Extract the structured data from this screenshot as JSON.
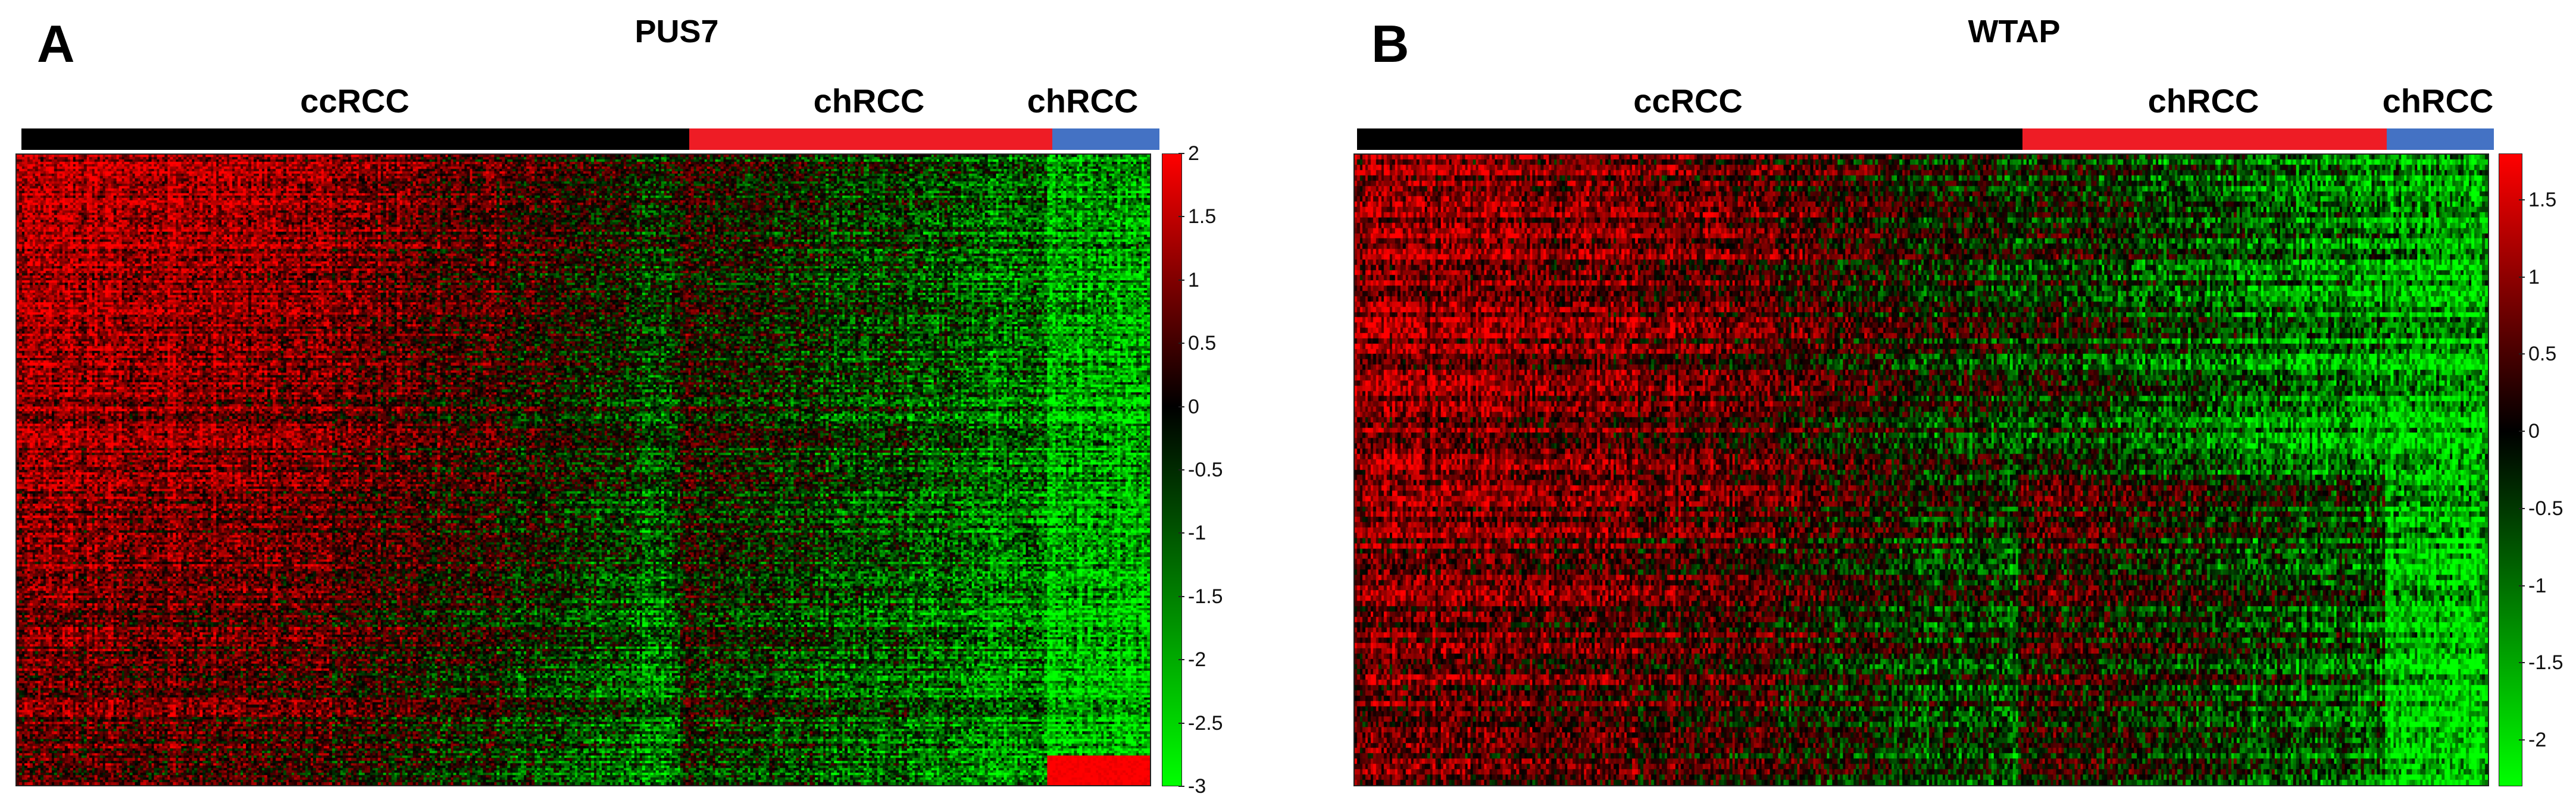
{
  "colors": {
    "high": "#ff0000",
    "mid": "#000000",
    "low": "#00ff00",
    "group_ccRCC": "#000000",
    "group_chRCC_1": "#ee1c25",
    "group_chRCC_2": "#4472c4"
  },
  "panels": [
    {
      "letter": "A",
      "title": "PUS7",
      "groups": [
        {
          "label": "ccRCC",
          "color": "#000000"
        },
        {
          "label": "chRCC",
          "color": "#ee1c25"
        },
        {
          "label": "chRCC",
          "color": "#4472c4"
        }
      ],
      "colorbar_ticks": [
        "2",
        "1.5",
        "1",
        "0.5",
        "0",
        "-0.5",
        "-1",
        "-1.5",
        "-2",
        "-2.5",
        "-3"
      ]
    },
    {
      "letter": "B",
      "title": "WTAP",
      "groups": [
        {
          "label": "ccRCC",
          "color": "#000000"
        },
        {
          "label": "chRCC",
          "color": "#ee1c25"
        },
        {
          "label": "chRCC",
          "color": "#4472c4"
        }
      ],
      "colorbar_ticks": [
        "1.5",
        "1",
        "0.5",
        "0",
        "-0.5",
        "-1",
        "-1.5",
        "-2"
      ]
    }
  ],
  "chart_data": [
    {
      "type": "heatmap",
      "title": "PUS7",
      "column_groups": [
        "ccRCC",
        "chRCC",
        "chRCC"
      ],
      "color_scale": {
        "min": -3,
        "max": 2,
        "low_color": "#00ff00",
        "mid_color": "#000000",
        "high_color": "#ff0000"
      },
      "legend": "right colorbar"
    },
    {
      "type": "heatmap",
      "title": "WTAP",
      "column_groups": [
        "ccRCC",
        "chRCC",
        "chRCC"
      ],
      "color_scale": {
        "min": -2.3,
        "max": 1.8,
        "low_color": "#00ff00",
        "mid_color": "#000000",
        "high_color": "#ff0000"
      },
      "legend": "right colorbar"
    }
  ]
}
